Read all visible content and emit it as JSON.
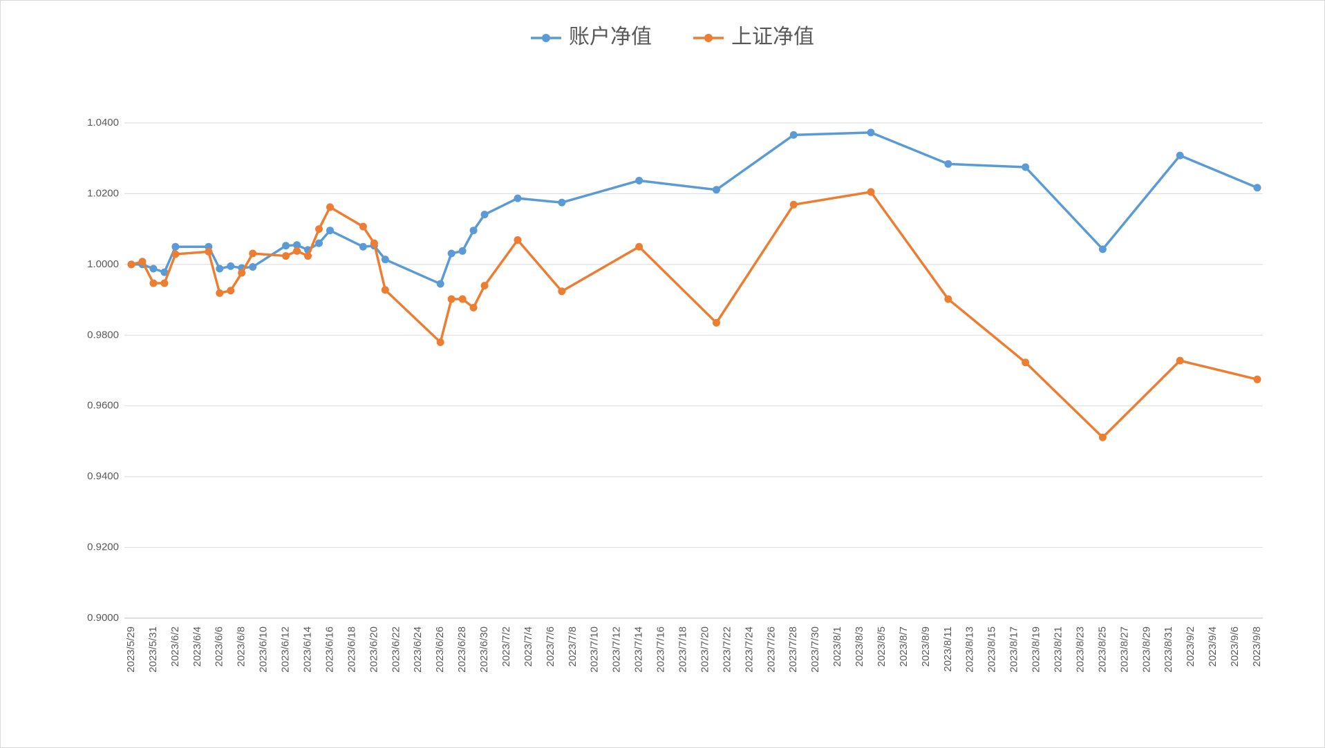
{
  "chart_data": {
    "type": "line",
    "x": [
      "2023/5/29",
      "2023/5/30",
      "2023/5/31",
      "2023/6/1",
      "2023/6/2",
      "2023/6/5",
      "2023/6/6",
      "2023/6/7",
      "2023/6/8",
      "2023/6/9",
      "2023/6/12",
      "2023/6/13",
      "2023/6/14",
      "2023/6/15",
      "2023/6/16",
      "2023/6/19",
      "2023/6/20",
      "2023/6/21",
      "2023/6/26",
      "2023/6/27",
      "2023/6/28",
      "2023/6/29",
      "2023/6/30",
      "2023/7/3",
      "2023/7/7",
      "2023/7/14",
      "2023/7/21",
      "2023/7/28",
      "2023/8/4",
      "2023/8/11",
      "2023/8/18",
      "2023/8/25",
      "2023/9/1",
      "2023/9/8"
    ],
    "series": [
      {
        "name": "账户净值",
        "color": "#5b9bd5",
        "values": [
          1.0,
          1.0,
          0.9988,
          0.9978,
          1.005,
          1.005,
          0.9988,
          0.9995,
          0.999,
          0.9993,
          1.0053,
          1.0055,
          1.0041,
          1.006,
          1.0096,
          1.005,
          1.0053,
          1.0014,
          0.9945,
          1.0031,
          1.0038,
          1.0096,
          1.0141,
          1.0187,
          1.0175,
          1.0237,
          1.0211,
          1.0366,
          1.0373,
          1.0284,
          1.0275,
          1.0043,
          1.0308,
          1.0217
        ]
      },
      {
        "name": "上证净值",
        "color": "#ed7d31",
        "values": [
          1.0,
          1.0008,
          0.9947,
          0.9947,
          1.0029,
          1.0036,
          0.9919,
          0.9926,
          0.9976,
          1.0031,
          1.0024,
          1.0038,
          1.0024,
          1.01,
          1.0162,
          1.0107,
          1.006,
          0.9928,
          0.978,
          0.9902,
          0.9902,
          0.9878,
          0.994,
          1.0069,
          0.9924,
          1.005,
          0.9835,
          1.0169,
          1.0205,
          0.9902,
          0.9723,
          0.9511,
          0.9728,
          0.9675
        ]
      }
    ],
    "xlim": [
      "2023/5/29",
      "2023/9/8"
    ],
    "xticks": [
      "2023/5/29",
      "2023/5/31",
      "2023/6/2",
      "2023/6/4",
      "2023/6/6",
      "2023/6/8",
      "2023/6/10",
      "2023/6/12",
      "2023/6/14",
      "2023/6/16",
      "2023/6/18",
      "2023/6/20",
      "2023/6/22",
      "2023/6/24",
      "2023/6/26",
      "2023/6/28",
      "2023/6/30",
      "2023/7/2",
      "2023/7/4",
      "2023/7/6",
      "2023/7/8",
      "2023/7/10",
      "2023/7/12",
      "2023/7/14",
      "2023/7/16",
      "2023/7/18",
      "2023/7/20",
      "2023/7/22",
      "2023/7/24",
      "2023/7/26",
      "2023/7/28",
      "2023/7/30",
      "2023/8/1",
      "2023/8/3",
      "2023/8/5",
      "2023/8/7",
      "2023/8/9",
      "2023/8/11",
      "2023/8/13",
      "2023/8/15",
      "2023/8/17",
      "2023/8/19",
      "2023/8/21",
      "2023/8/23",
      "2023/8/25",
      "2023/8/27",
      "2023/8/29",
      "2023/8/31",
      "2023/9/2",
      "2023/9/4",
      "2023/9/6",
      "2023/9/8"
    ],
    "ylim": [
      0.9,
      1.04
    ],
    "yticks": [
      {
        "value": 0.9,
        "label": "0.9000"
      },
      {
        "value": 0.92,
        "label": "0.9200"
      },
      {
        "value": 0.94,
        "label": "0.9400"
      },
      {
        "value": 0.96,
        "label": "0.9600"
      },
      {
        "value": 0.98,
        "label": "0.9800"
      },
      {
        "value": 1.0,
        "label": "1.0000"
      },
      {
        "value": 1.02,
        "label": "1.0200"
      },
      {
        "value": 1.04,
        "label": "1.0400"
      }
    ],
    "grid": true,
    "legend": "top"
  }
}
